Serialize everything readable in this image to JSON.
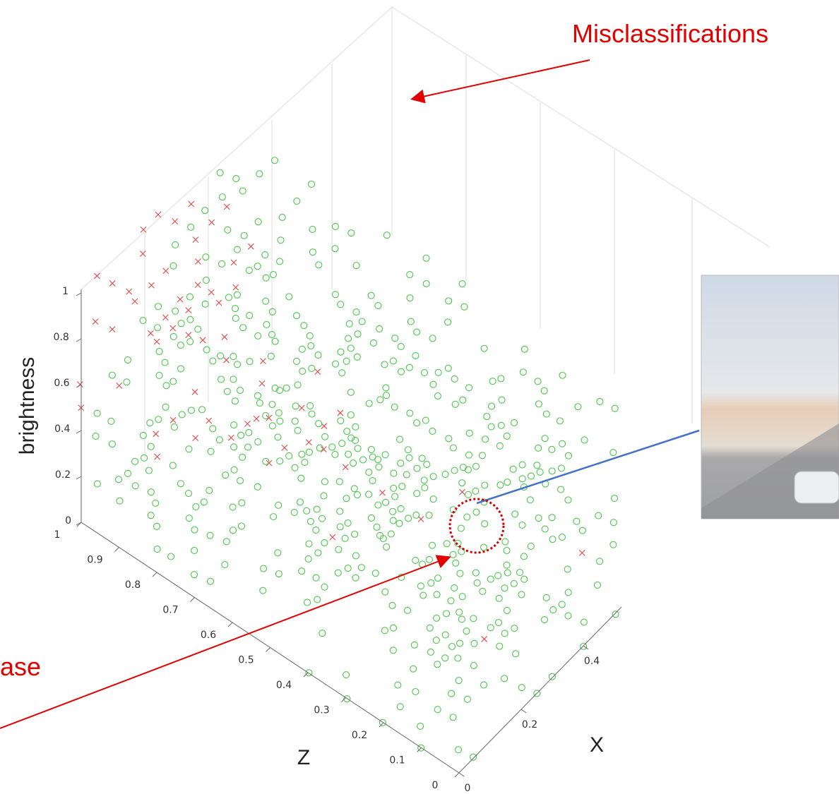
{
  "annotations": {
    "top": "Misclassifications",
    "left": "ase"
  },
  "axes": {
    "brightness": {
      "title": "brightness",
      "ticks": [
        0,
        0.2,
        0.4,
        0.6,
        0.8,
        1
      ]
    },
    "z": {
      "title": "Z",
      "ticks": [
        1,
        0.9,
        0.8,
        0.7,
        0.6,
        0.5,
        0.4,
        0.3,
        0.2,
        0.1,
        0
      ]
    },
    "x": {
      "title": "X",
      "ticks": [
        0,
        0.2,
        0.4
      ]
    }
  }
}
